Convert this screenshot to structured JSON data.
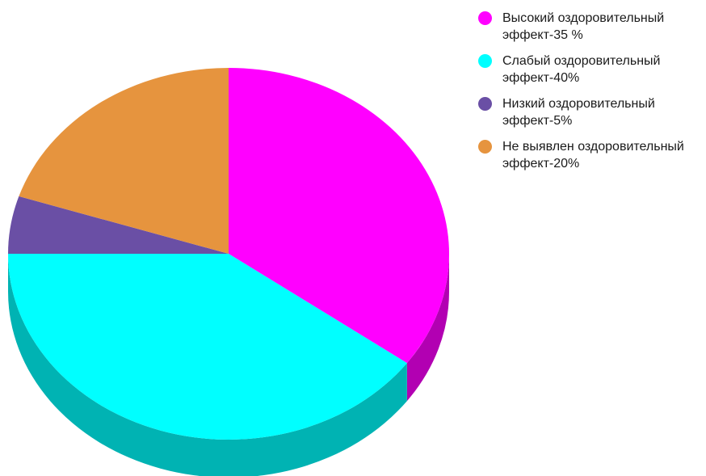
{
  "chart_data": {
    "type": "pie",
    "style": "3d",
    "slices": [
      {
        "label": "Высокий оздоровительный эффект-35 %",
        "value": 35,
        "color": "#ff00ff",
        "side_color": "#b200b2"
      },
      {
        "label": "Слабый оздоровительный эффект-40%",
        "value": 40,
        "color": "#00ffff",
        "side_color": "#00b3b3"
      },
      {
        "label": "Низкий оздоровительный эффект-5%",
        "value": 5,
        "color": "#6a4fa5",
        "side_color": "#4a3773"
      },
      {
        "label": "Не выявлен оздоровительный эффект-20%",
        "value": 20,
        "color": "#e6943e",
        "side_color": "#a1682b"
      }
    ],
    "start_angle_deg": 0,
    "direction": "clockwise",
    "legend_position": "top-right"
  }
}
